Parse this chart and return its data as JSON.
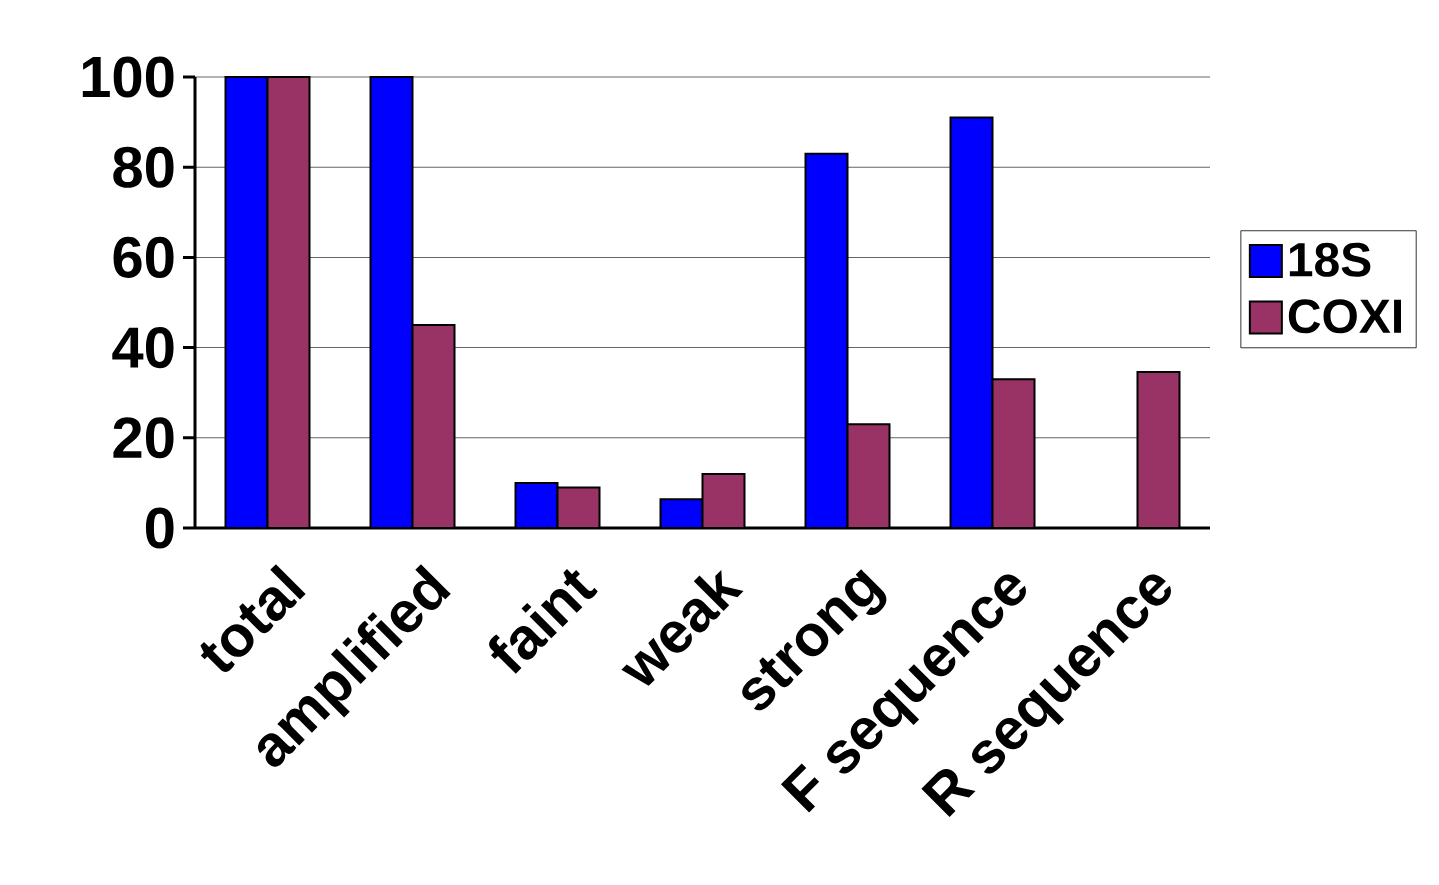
{
  "chart_data": {
    "type": "bar",
    "categories": [
      "total",
      "amplified",
      "faint",
      "weak",
      "strong",
      "F sequence",
      "R sequence"
    ],
    "series": [
      {
        "name": "18S",
        "color": "#0000ff",
        "values": [
          100,
          100,
          10,
          6.4,
          83,
          91,
          null
        ]
      },
      {
        "name": "COXI",
        "color": "#993366",
        "values": [
          100,
          45,
          9,
          12,
          23,
          33,
          34.6
        ]
      }
    ],
    "ylim": [
      0,
      100
    ],
    "yticks": [
      0,
      20,
      40,
      60,
      80,
      100
    ],
    "grid": "y",
    "legend": "right"
  }
}
